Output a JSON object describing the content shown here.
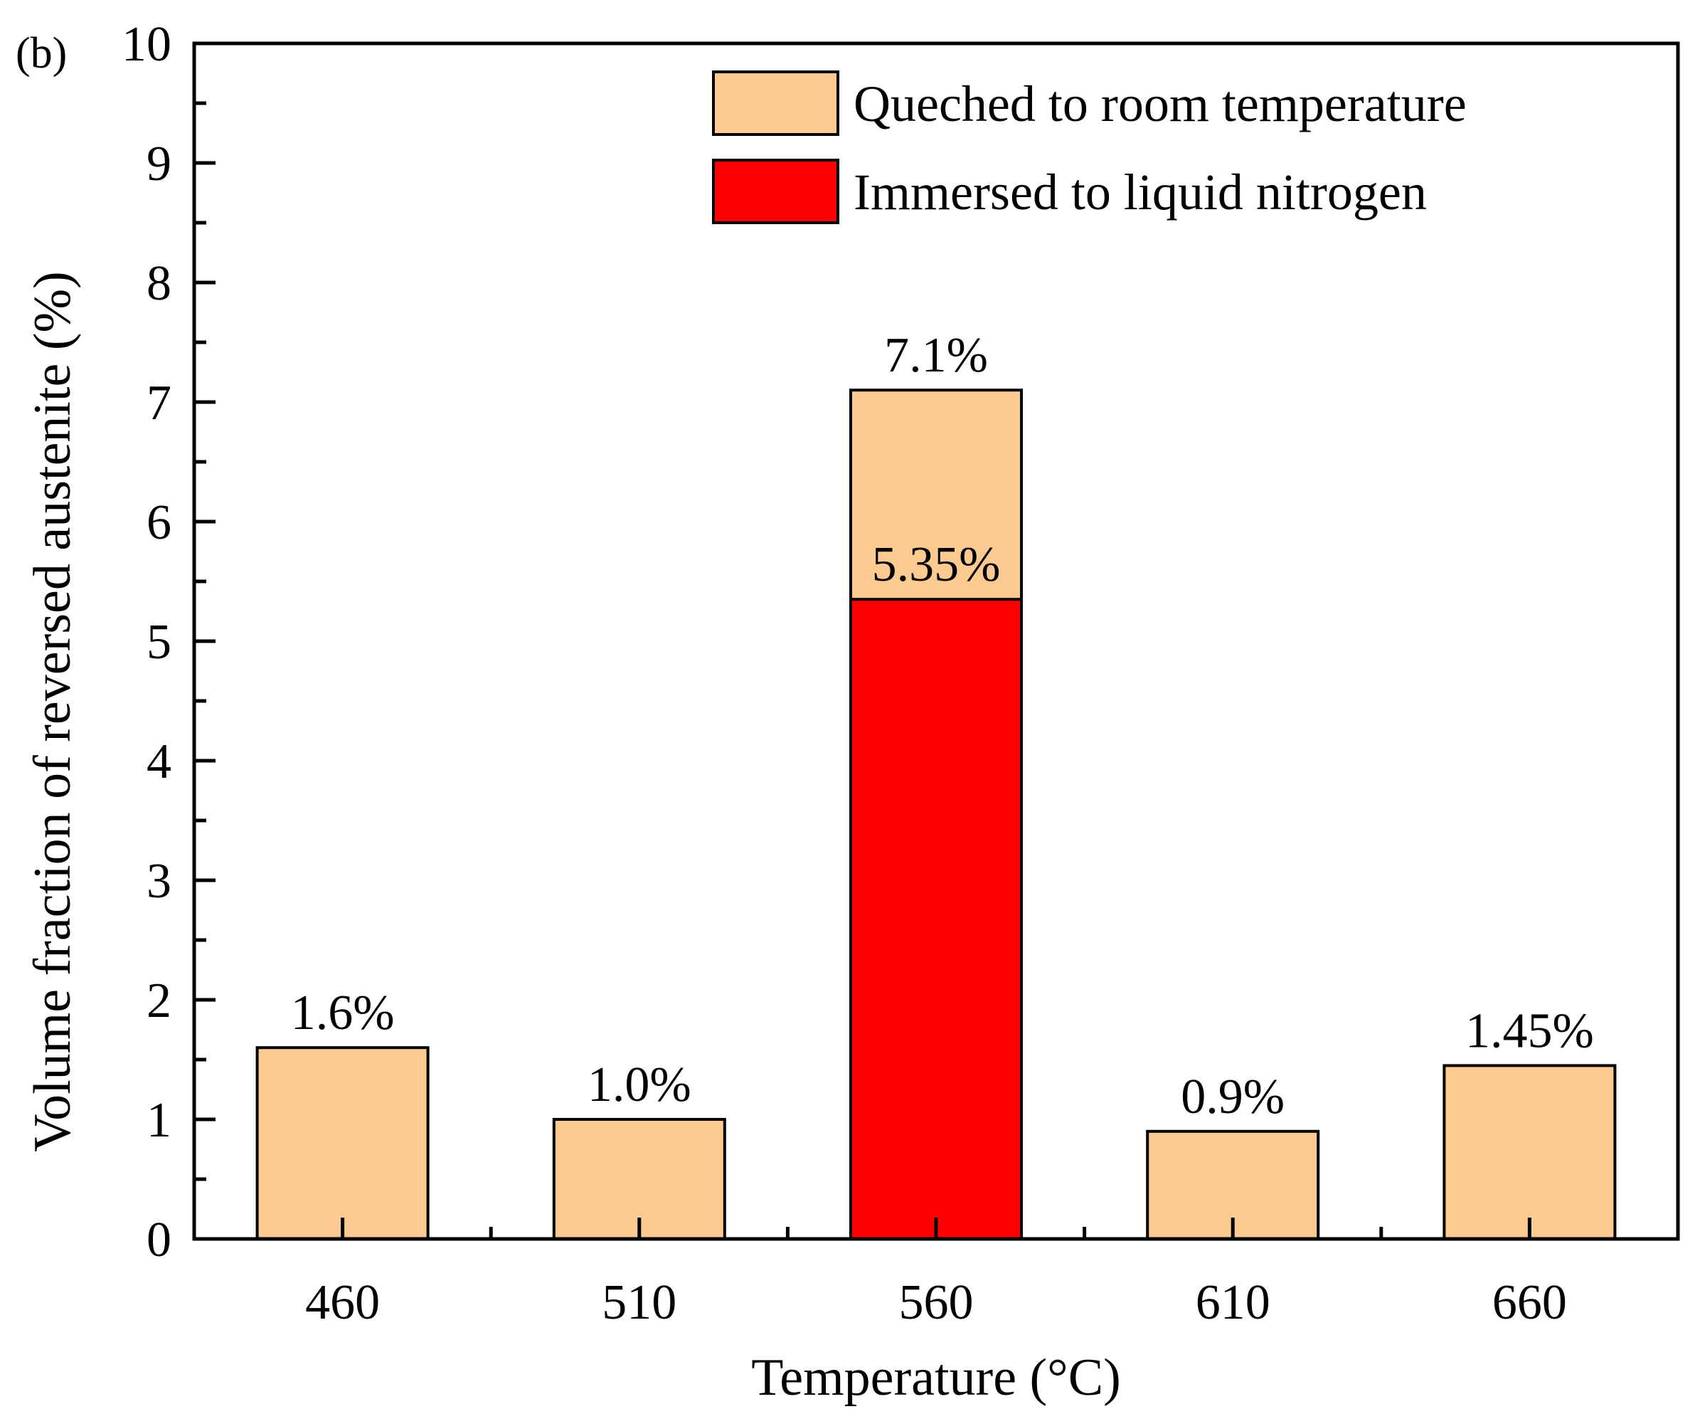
{
  "chart_data": {
    "type": "bar",
    "panel_label": "(b)",
    "xlabel": "Temperature (°C)",
    "ylabel": "Volume fraction of reversed austenite (%)",
    "ylim": [
      0,
      10
    ],
    "yticks": [
      "0",
      "1",
      "2",
      "3",
      "4",
      "5",
      "6",
      "7",
      "8",
      "9",
      "10"
    ],
    "categories": [
      "460",
      "510",
      "560",
      "610",
      "660"
    ],
    "series": [
      {
        "name": "Queched to room temperature",
        "color": "#FDCB91",
        "values": [
          1.6,
          1.0,
          7.1,
          0.9,
          1.45
        ],
        "labels": [
          "1.6%",
          "1.0%",
          "7.1%",
          "0.9%",
          "1.45%"
        ]
      },
      {
        "name": "Immersed to liquid nitrogen",
        "color": "#FF0000",
        "values": [
          null,
          null,
          5.35,
          null,
          null
        ],
        "labels": [
          "",
          "",
          "5.35%",
          "",
          ""
        ]
      }
    ],
    "legend_position": "top-right",
    "grid": false
  }
}
